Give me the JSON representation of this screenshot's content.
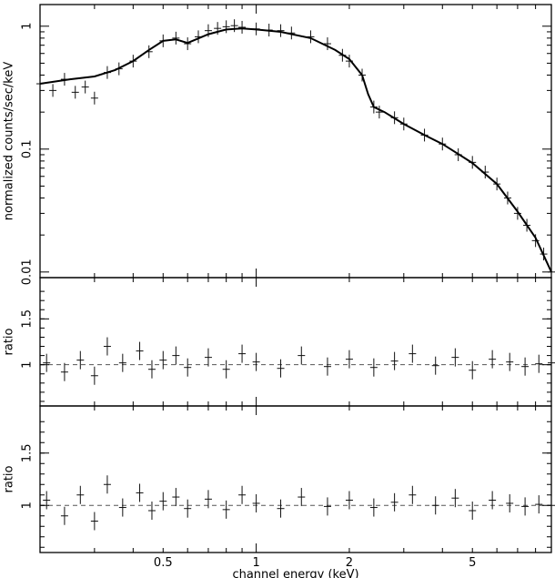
{
  "chart_data": [
    {
      "type": "scatter",
      "panel": "spectrum",
      "xscale": "log",
      "yscale": "log",
      "xlim": [
        0.2,
        9.0
      ],
      "ylim": [
        0.009,
        1.5
      ],
      "ylabel": "normalized counts/sec/keV",
      "yticks": [
        {
          "value": 1,
          "label": "1"
        },
        {
          "value": 0.1,
          "label": "0.1"
        },
        {
          "value": 0.01,
          "label": "0.01"
        }
      ],
      "series": [
        {
          "style": "data-crosses",
          "x": [
            0.2,
            0.22,
            0.24,
            0.26,
            0.28,
            0.3,
            0.33,
            0.36,
            0.4,
            0.45,
            0.5,
            0.55,
            0.6,
            0.65,
            0.7,
            0.75,
            0.8,
            0.85,
            0.9,
            1.0,
            1.1,
            1.2,
            1.3,
            1.5,
            1.7,
            1.9,
            2.0,
            2.2,
            2.4,
            2.5,
            2.8,
            3.0,
            3.5,
            4.0,
            4.5,
            5.0,
            5.5,
            6.0,
            6.5,
            7.0,
            7.5,
            8.0,
            8.5,
            9.0
          ],
          "y": [
            0.34,
            0.3,
            0.37,
            0.29,
            0.32,
            0.26,
            0.42,
            0.45,
            0.52,
            0.62,
            0.76,
            0.8,
            0.72,
            0.82,
            0.92,
            0.96,
            0.99,
            1.01,
            0.98,
            0.95,
            0.93,
            0.92,
            0.88,
            0.82,
            0.72,
            0.58,
            0.52,
            0.4,
            0.22,
            0.2,
            0.18,
            0.16,
            0.13,
            0.11,
            0.09,
            0.078,
            0.065,
            0.052,
            0.04,
            0.03,
            0.024,
            0.018,
            0.014,
            0.01
          ]
        },
        {
          "style": "model-line",
          "x": [
            0.2,
            0.25,
            0.3,
            0.35,
            0.4,
            0.45,
            0.5,
            0.55,
            0.6,
            0.7,
            0.8,
            0.9,
            1.0,
            1.2,
            1.5,
            1.8,
            2.0,
            2.2,
            2.3,
            2.4,
            2.6,
            3.0,
            3.5,
            4.0,
            5.0,
            6.0,
            7.0,
            8.0,
            9.0
          ],
          "y": [
            0.34,
            0.37,
            0.39,
            0.44,
            0.52,
            0.64,
            0.76,
            0.78,
            0.73,
            0.86,
            0.94,
            0.96,
            0.94,
            0.9,
            0.8,
            0.64,
            0.54,
            0.4,
            0.28,
            0.22,
            0.2,
            0.16,
            0.13,
            0.11,
            0.077,
            0.052,
            0.031,
            0.019,
            0.01
          ]
        }
      ]
    },
    {
      "type": "scatter",
      "panel": "ratio-1",
      "xscale": "log",
      "xlim": [
        0.2,
        9.0
      ],
      "ylim": [
        0.55,
        1.95
      ],
      "ylabel": "ratio",
      "reference_line": 1,
      "yticks": [
        {
          "value": 1,
          "label": "1"
        },
        {
          "value": 1.5,
          "label": "1.5"
        }
      ],
      "series": [
        {
          "style": "data-crosses",
          "x": [
            0.21,
            0.24,
            0.27,
            0.3,
            0.33,
            0.37,
            0.42,
            0.46,
            0.5,
            0.55,
            0.6,
            0.7,
            0.8,
            0.9,
            1.0,
            1.2,
            1.4,
            1.7,
            2.0,
            2.4,
            2.8,
            3.2,
            3.8,
            4.4,
            5.0,
            5.8,
            6.6,
            7.4,
            8.2,
            9.0
          ],
          "y": [
            1.02,
            0.92,
            1.05,
            0.88,
            1.2,
            1.02,
            1.15,
            0.95,
            1.05,
            1.1,
            0.97,
            1.08,
            0.95,
            1.12,
            1.03,
            0.96,
            1.1,
            0.98,
            1.06,
            0.97,
            1.04,
            1.12,
            0.99,
            1.08,
            0.94,
            1.06,
            1.03,
            0.98,
            1.01,
            1.02
          ]
        }
      ]
    },
    {
      "type": "scatter",
      "panel": "ratio-2",
      "xscale": "log",
      "xlim": [
        0.2,
        9.0
      ],
      "ylim": [
        0.55,
        1.95
      ],
      "ylabel": "ratio",
      "xlabel": "channel energy (keV)",
      "reference_line": 1,
      "yticks": [
        {
          "value": 1,
          "label": "1"
        },
        {
          "value": 1.5,
          "label": "1.5"
        }
      ],
      "xticks": [
        {
          "value": 0.5,
          "label": "0.5"
        },
        {
          "value": 1,
          "label": "1"
        },
        {
          "value": 2,
          "label": "2"
        },
        {
          "value": 5,
          "label": "5"
        }
      ],
      "series": [
        {
          "style": "data-crosses",
          "x": [
            0.21,
            0.24,
            0.27,
            0.3,
            0.33,
            0.37,
            0.42,
            0.46,
            0.5,
            0.55,
            0.6,
            0.7,
            0.8,
            0.9,
            1.0,
            1.2,
            1.4,
            1.7,
            2.0,
            2.4,
            2.8,
            3.2,
            3.8,
            4.4,
            5.0,
            5.8,
            6.6,
            7.4,
            8.2,
            9.0
          ],
          "y": [
            1.05,
            0.9,
            1.1,
            0.85,
            1.2,
            0.98,
            1.12,
            0.95,
            1.04,
            1.08,
            0.97,
            1.06,
            0.96,
            1.1,
            1.02,
            0.97,
            1.08,
            0.99,
            1.05,
            0.98,
            1.03,
            1.1,
            1.0,
            1.07,
            0.95,
            1.05,
            1.02,
            0.99,
            1.01,
            1.0
          ]
        }
      ]
    }
  ]
}
